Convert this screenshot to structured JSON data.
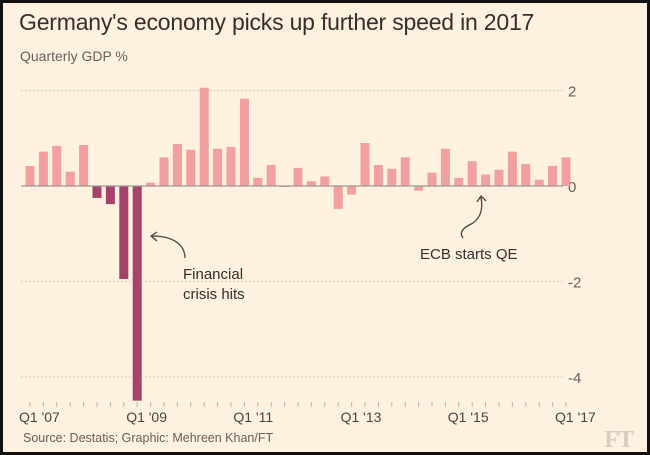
{
  "chart_data": {
    "type": "bar",
    "title": "Germany's economy picks up further speed in 2017",
    "subtitle": "Quarterly GDP %",
    "xlabel": "",
    "ylabel": "Quarterly GDP %",
    "ylim": [
      -4.6,
      2.3
    ],
    "yticks": [
      2,
      0,
      -2,
      -4
    ],
    "ytick_labels": [
      "2",
      "0",
      "-2",
      "-4"
    ],
    "grid": true,
    "x_tick_labels": [
      {
        "index": 0,
        "label": "Q1 '07"
      },
      {
        "index": 8,
        "label": "Q1 '09"
      },
      {
        "index": 16,
        "label": "Q1 '11"
      },
      {
        "index": 24,
        "label": "Q1 '13"
      },
      {
        "index": 32,
        "label": "Q1 '15"
      },
      {
        "index": 40,
        "label": "Q1 '17"
      }
    ],
    "categories": [
      "Q1 2007",
      "Q2 2007",
      "Q3 2007",
      "Q4 2007",
      "Q1 2008",
      "Q2 2008",
      "Q3 2008",
      "Q4 2008",
      "Q1 2009",
      "Q2 2009",
      "Q3 2009",
      "Q4 2009",
      "Q1 2010",
      "Q2 2010",
      "Q3 2010",
      "Q4 2010",
      "Q1 2011",
      "Q2 2011",
      "Q3 2011",
      "Q4 2011",
      "Q1 2012",
      "Q2 2012",
      "Q3 2012",
      "Q4 2012",
      "Q1 2013",
      "Q2 2013",
      "Q3 2013",
      "Q4 2013",
      "Q1 2014",
      "Q2 2014",
      "Q3 2014",
      "Q4 2014",
      "Q1 2015",
      "Q2 2015",
      "Q3 2015",
      "Q4 2015",
      "Q1 2016",
      "Q2 2016",
      "Q3 2016",
      "Q4 2016",
      "Q1 2017"
    ],
    "values": [
      0.42,
      0.72,
      0.84,
      0.3,
      0.86,
      -0.25,
      -0.38,
      -1.95,
      -4.5,
      0.07,
      0.6,
      0.88,
      0.76,
      2.06,
      0.78,
      0.82,
      1.83,
      0.17,
      0.44,
      -0.02,
      0.38,
      0.1,
      0.2,
      -0.48,
      -0.18,
      0.9,
      0.44,
      0.36,
      0.6,
      -0.1,
      0.28,
      0.78,
      0.17,
      0.52,
      0.24,
      0.34,
      0.72,
      0.46,
      0.13,
      0.42,
      0.6
    ],
    "highlight_range": {
      "from": "Q2 2008",
      "to": "Q1 2009",
      "label": "Financial crisis"
    },
    "colors": {
      "normal": "#f19f9f",
      "highlight": "#a4426a",
      "grid": "#c9bdb3",
      "axis": "#a09890",
      "text": "#66605c",
      "background": "#fff1e0"
    },
    "annotations": [
      {
        "text_lines": [
          "Financial",
          "crisis hits"
        ],
        "points_to": "Q1 2009"
      },
      {
        "text_lines": [
          "ECB starts QE"
        ],
        "points_to": "Q1 2015"
      }
    ]
  },
  "footer": {
    "source": "Source: Destatis; Graphic: Mehreen Khan/FT",
    "logo": "FT"
  }
}
